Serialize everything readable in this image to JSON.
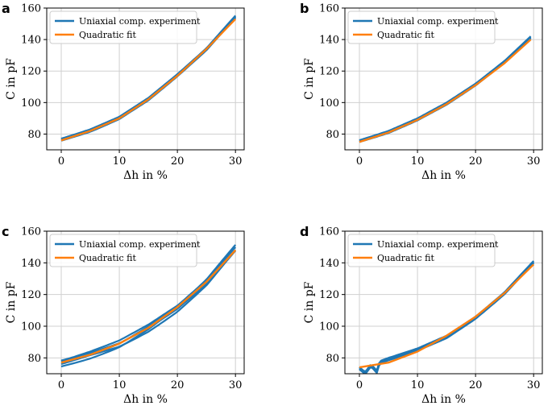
{
  "chart_data": [
    {
      "panel": "a",
      "type": "line",
      "xlabel": "Δh in %",
      "ylabel": "C in pF",
      "xlim": [
        -2.5,
        31.5
      ],
      "ylim": [
        70,
        160
      ],
      "xticks": [
        0,
        10,
        20,
        30
      ],
      "yticks": [
        80,
        100,
        120,
        140,
        160
      ],
      "grid": true,
      "legend_placement": "top-left",
      "series": [
        {
          "name": "Uniaxial comp. experiment",
          "color": "#1f77b4",
          "spread": 1.6,
          "x": [
            0,
            5,
            10,
            15,
            20,
            25,
            30
          ],
          "y": [
            77,
            83,
            91,
            103,
            118,
            134,
            154
          ]
        },
        {
          "name": "Quadratic fit",
          "color": "#ff7f0e",
          "x": [
            0,
            5,
            10,
            15,
            20,
            25,
            30
          ],
          "y": [
            76,
            82,
            90,
            102,
            117,
            134,
            153
          ]
        }
      ]
    },
    {
      "panel": "b",
      "type": "line",
      "xlabel": "Δh in %",
      "ylabel": "C in pF",
      "xlim": [
        -2.5,
        31.5
      ],
      "ylim": [
        70,
        160
      ],
      "xticks": [
        0,
        10,
        20,
        30
      ],
      "yticks": [
        80,
        100,
        120,
        140,
        160
      ],
      "grid": true,
      "legend_placement": "top-left",
      "series": [
        {
          "name": "Uniaxial comp. experiment",
          "color": "#1f77b4",
          "spread": 1.4,
          "x": [
            0,
            5,
            10,
            15,
            20,
            25,
            29.5
          ],
          "y": [
            76,
            82,
            90,
            100,
            112,
            126,
            141
          ]
        },
        {
          "name": "Quadratic fit",
          "color": "#ff7f0e",
          "x": [
            0,
            5,
            10,
            15,
            20,
            25,
            29.5
          ],
          "y": [
            75,
            81,
            89,
            99,
            111,
            125,
            140
          ]
        }
      ]
    },
    {
      "panel": "c",
      "type": "line",
      "xlabel": "Δh in %",
      "ylabel": "C in pF",
      "xlim": [
        -2.5,
        31.5
      ],
      "ylim": [
        70,
        160
      ],
      "xticks": [
        0,
        10,
        20,
        30
      ],
      "yticks": [
        80,
        100,
        120,
        140,
        160
      ],
      "grid": true,
      "legend_placement": "top-left",
      "series": [
        {
          "name": "Uniaxial comp. experiment",
          "color": "#1f77b4",
          "spread": 4.5,
          "x": [
            0,
            5,
            10,
            15,
            20,
            25,
            30
          ],
          "y": [
            78,
            84,
            91,
            101,
            113,
            128,
            148
          ]
        },
        {
          "name": "Quadratic fit",
          "color": "#ff7f0e",
          "x": [
            0,
            5,
            10,
            15,
            20,
            25,
            30
          ],
          "y": [
            77,
            82,
            89,
            99,
            112,
            128,
            148
          ]
        }
      ]
    },
    {
      "panel": "d",
      "type": "line",
      "xlabel": "Δh in %",
      "ylabel": "C in pF",
      "xlim": [
        -2.5,
        31.5
      ],
      "ylim": [
        70,
        160
      ],
      "xticks": [
        0,
        10,
        20,
        30
      ],
      "yticks": [
        80,
        100,
        120,
        140,
        160
      ],
      "grid": true,
      "legend_placement": "top-left",
      "series": [
        {
          "name": "Uniaxial comp. experiment",
          "color": "#1f77b4",
          "spread": 1.6,
          "x": [
            0,
            1,
            2,
            3,
            3.5,
            5,
            10,
            15,
            20,
            25,
            30
          ],
          "y": [
            74,
            71,
            76,
            72,
            78,
            80,
            86,
            94,
            106,
            121,
            140
          ]
        },
        {
          "name": "Quadratic fit",
          "color": "#ff7f0e",
          "x": [
            0,
            5,
            10,
            15,
            20,
            25,
            30
          ],
          "y": [
            74,
            77,
            84,
            94,
            106,
            121,
            139
          ]
        }
      ]
    }
  ],
  "legend": {
    "experiment_label": "Uniaxial comp. experiment",
    "fit_label": "Quadratic fit"
  }
}
